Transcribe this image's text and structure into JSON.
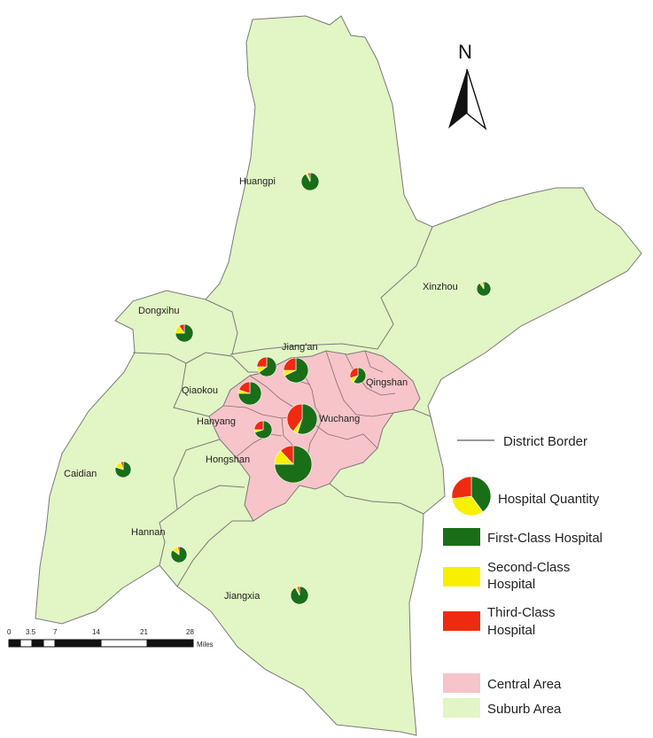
{
  "north_label": "N",
  "colors": {
    "suburb": "#e2f5c4",
    "central": "#f6c4c9",
    "border": "#7a7a7a",
    "first_class": "#1a6e17",
    "second_class": "#f7f000",
    "third_class": "#ee2a10"
  },
  "districts": [
    {
      "key": "huangpi",
      "label": "Huangpi",
      "first": 0.92,
      "second": 0.04,
      "third": 0.04
    },
    {
      "key": "xinzhou",
      "label": "Xinzhou",
      "first": 0.9,
      "second": 0.07,
      "third": 0.03
    },
    {
      "key": "dongxihu",
      "label": "Dongxihu",
      "first": 0.75,
      "second": 0.15,
      "third": 0.1
    },
    {
      "key": "jiangan_w",
      "label": "",
      "first": 0.65,
      "second": 0.1,
      "third": 0.25
    },
    {
      "key": "jiangan",
      "label": "Jiang'an",
      "first": 0.68,
      "second": 0.07,
      "third": 0.25
    },
    {
      "key": "qingshan",
      "label": "Qingshan",
      "first": 0.6,
      "second": 0.1,
      "third": 0.3
    },
    {
      "key": "qiaokou",
      "label": "Qiaokou",
      "first": 0.75,
      "second": 0.05,
      "third": 0.2
    },
    {
      "key": "wuchang",
      "label": "Wuchang",
      "first": 0.55,
      "second": 0.05,
      "third": 0.4
    },
    {
      "key": "hanyang",
      "label": "Hanyang",
      "first": 0.7,
      "second": 0.05,
      "third": 0.25
    },
    {
      "key": "hongshan",
      "label": "Hongshan",
      "first": 0.75,
      "second": 0.13,
      "third": 0.12
    },
    {
      "key": "caidian",
      "label": "Caidian",
      "first": 0.8,
      "second": 0.15,
      "third": 0.05
    },
    {
      "key": "hannan",
      "label": "Hannan",
      "first": 0.85,
      "second": 0.12,
      "third": 0.03
    },
    {
      "key": "jiangxia",
      "label": "Jiangxia",
      "first": 0.92,
      "second": 0.04,
      "third": 0.04
    }
  ],
  "legend": {
    "district_border": "District Border",
    "hospital_quantity": "Hospital Quantity",
    "first_class": "First-Class Hospital",
    "second_class_1": "Second-Class",
    "second_class_2": "Hospital",
    "third_class_1": "Third-Class",
    "third_class_2": "Hospital",
    "central": "Central Area",
    "suburb": "Suburb Area"
  },
  "scale_bar": {
    "ticks": [
      "0",
      "3.5",
      "7",
      "14",
      "21",
      "28"
    ],
    "unit": "Miles"
  }
}
